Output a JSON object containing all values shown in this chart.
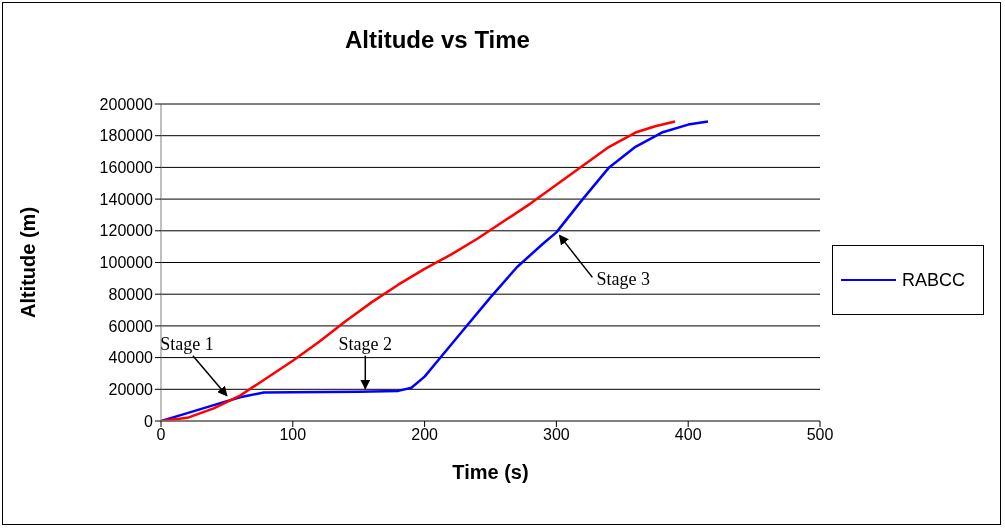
{
  "chart_data": {
    "type": "line",
    "title": "Altitude vs Time",
    "xlabel": "Time (s)",
    "ylabel": "Altitude (m)",
    "xlim": [
      0,
      500
    ],
    "xticks": [
      0,
      100,
      200,
      300,
      400,
      500
    ],
    "ylim": [
      0,
      200000
    ],
    "yticks": [
      0,
      20000,
      40000,
      60000,
      80000,
      100000,
      120000,
      140000,
      160000,
      180000,
      200000
    ],
    "grid": "y",
    "legend": "right",
    "marker": "none",
    "line_style": "solid",
    "series": [
      {
        "name": "RABCC",
        "color": "#0000ff",
        "x": [
          0,
          20,
          40,
          60,
          78,
          100,
          150,
          180,
          190,
          200,
          210,
          230,
          250,
          270,
          290,
          300,
          320,
          340,
          360,
          380,
          400,
          415
        ],
        "values": [
          0,
          5000,
          10000,
          15000,
          18000,
          18200,
          18500,
          19000,
          21000,
          28000,
          38000,
          58000,
          78000,
          97000,
          112000,
          119000,
          140000,
          160000,
          173000,
          182000,
          187000,
          189000
        ]
      },
      {
        "color": "#ff0000",
        "x": [
          0,
          20,
          40,
          60,
          80,
          100,
          120,
          140,
          160,
          180,
          200,
          220,
          240,
          260,
          280,
          300,
          320,
          340,
          360,
          375,
          390
        ],
        "values": [
          0,
          2000,
          8000,
          16000,
          27000,
          38000,
          50000,
          63000,
          75000,
          86000,
          96000,
          105000,
          115000,
          126000,
          137000,
          149000,
          161000,
          173000,
          182000,
          186000,
          189000
        ]
      }
    ],
    "annotations": [
      {
        "text": "Stage 1",
        "x": 50,
        "y": 14000
      },
      {
        "text": "Stage 2",
        "x": 155,
        "y": 18500
      },
      {
        "text": "Stage 3",
        "x": 300,
        "y": 119000
      }
    ]
  }
}
